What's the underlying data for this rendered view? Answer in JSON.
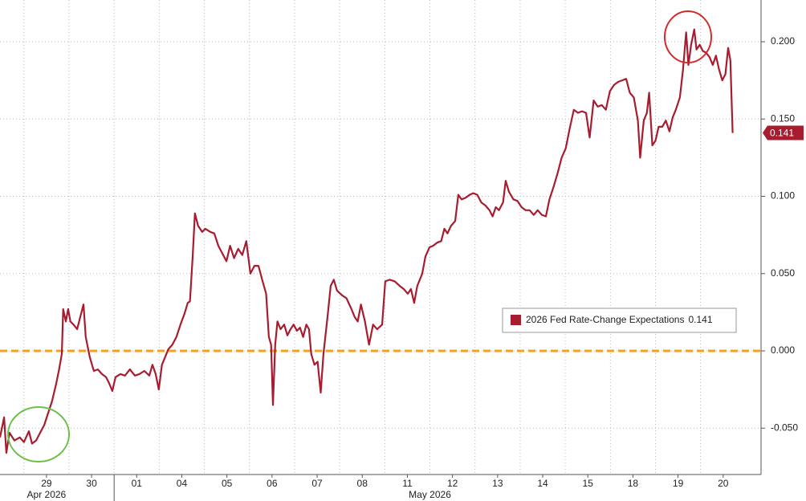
{
  "chart_data": {
    "type": "line",
    "x": [
      -1.03,
      -0.94,
      -0.89,
      -0.82,
      -0.71,
      -0.59,
      -0.5,
      -0.39,
      -0.32,
      -0.23,
      -0.14,
      -0.05,
      0.04,
      0.12,
      0.21,
      0.28,
      0.34,
      0.37,
      0.43,
      0.48,
      0.53,
      0.6,
      0.68,
      0.75,
      0.82,
      0.87,
      0.96,
      1.05,
      1.14,
      1.23,
      1.32,
      1.39,
      1.46,
      1.53,
      1.64,
      1.74,
      1.85,
      1.96,
      2.06,
      2.17,
      2.28,
      2.35,
      2.42,
      2.49,
      2.56,
      2.63,
      2.7,
      2.79,
      2.88,
      2.97,
      3.06,
      3.13,
      3.18,
      3.24,
      3.29,
      3.36,
      3.45,
      3.52,
      3.63,
      3.72,
      3.81,
      3.9,
      3.99,
      4.07,
      4.16,
      4.25,
      4.34,
      4.43,
      4.52,
      4.61,
      4.7,
      4.79,
      4.87,
      4.93,
      4.98,
      5.02,
      5.07,
      5.12,
      5.19,
      5.27,
      5.34,
      5.41,
      5.48,
      5.55,
      5.62,
      5.69,
      5.76,
      5.82,
      5.87,
      5.94,
      6.01,
      6.08,
      6.14,
      6.23,
      6.3,
      6.37,
      6.44,
      6.55,
      6.65,
      6.76,
      6.83,
      6.9,
      6.97,
      7.06,
      7.15,
      7.24,
      7.33,
      7.44,
      7.51,
      7.61,
      7.72,
      7.83,
      7.92,
      8.01,
      8.08,
      8.15,
      8.22,
      8.33,
      8.4,
      8.49,
      8.57,
      8.66,
      8.75,
      8.82,
      8.89,
      8.97,
      9.06,
      9.13,
      9.2,
      9.29,
      9.38,
      9.46,
      9.55,
      9.64,
      9.73,
      9.82,
      9.89,
      9.96,
      10.03,
      10.12,
      10.18,
      10.25,
      10.35,
      10.44,
      10.53,
      10.62,
      10.71,
      10.8,
      10.89,
      10.98,
      11.07,
      11.15,
      11.24,
      11.33,
      11.42,
      11.51,
      11.6,
      11.69,
      11.78,
      11.87,
      11.96,
      12.04,
      12.13,
      12.22,
      12.31,
      12.4,
      12.49,
      12.58,
      12.67,
      12.76,
      12.85,
      12.93,
      13.02,
      13.11,
      13.16,
      13.24,
      13.31,
      13.36,
      13.43,
      13.5,
      13.57,
      13.65,
      13.73,
      13.81,
      13.88,
      13.95,
      14.04,
      14.11,
      14.18,
      14.23,
      14.29,
      14.36,
      14.41,
      14.48,
      14.55,
      14.62,
      14.7,
      14.77,
      14.84,
      14.91,
      14.98,
      15.05,
      15.11,
      15.16,
      15.21
    ],
    "series": [
      {
        "name": "2026 Fed Rate-Change Expectations",
        "color": "#a81c30",
        "values": [
          -0.056,
          -0.043,
          -0.066,
          -0.053,
          -0.058,
          -0.056,
          -0.059,
          -0.052,
          -0.06,
          -0.058,
          -0.053,
          -0.048,
          -0.04,
          -0.033,
          -0.022,
          -0.012,
          -0.002,
          0.027,
          0.019,
          0.027,
          0.019,
          0.017,
          0.014,
          0.022,
          0.03,
          0.009,
          -0.004,
          -0.013,
          -0.012,
          -0.015,
          -0.017,
          -0.021,
          -0.026,
          -0.017,
          -0.015,
          -0.016,
          -0.012,
          -0.016,
          -0.015,
          -0.013,
          -0.016,
          -0.009,
          -0.015,
          -0.025,
          -0.009,
          -0.004,
          0.001,
          0.004,
          0.009,
          0.017,
          0.024,
          0.031,
          0.032,
          0.061,
          0.089,
          0.081,
          0.077,
          0.079,
          0.077,
          0.076,
          0.068,
          0.063,
          0.058,
          0.068,
          0.06,
          0.066,
          0.062,
          0.071,
          0.05,
          0.055,
          0.055,
          0.045,
          0.037,
          0.009,
          0.004,
          -0.035,
          0.004,
          0.019,
          0.014,
          0.017,
          0.01,
          0.014,
          0.017,
          0.013,
          0.015,
          0.009,
          0.017,
          0.014,
          -0.002,
          -0.009,
          -0.007,
          -0.027,
          -0.002,
          0.022,
          0.042,
          0.046,
          0.039,
          0.036,
          0.034,
          0.027,
          0.022,
          0.019,
          0.03,
          0.019,
          0.004,
          0.017,
          0.014,
          0.017,
          0.045,
          0.046,
          0.045,
          0.042,
          0.04,
          0.037,
          0.04,
          0.031,
          0.042,
          0.05,
          0.061,
          0.067,
          0.068,
          0.07,
          0.071,
          0.079,
          0.076,
          0.081,
          0.084,
          0.101,
          0.098,
          0.099,
          0.101,
          0.102,
          0.101,
          0.096,
          0.094,
          0.091,
          0.087,
          0.093,
          0.091,
          0.096,
          0.11,
          0.103,
          0.098,
          0.097,
          0.093,
          0.091,
          0.091,
          0.088,
          0.091,
          0.088,
          0.087,
          0.098,
          0.106,
          0.115,
          0.125,
          0.131,
          0.144,
          0.156,
          0.154,
          0.155,
          0.154,
          0.138,
          0.162,
          0.158,
          0.159,
          0.156,
          0.168,
          0.172,
          0.174,
          0.175,
          0.176,
          0.167,
          0.164,
          0.149,
          0.125,
          0.149,
          0.154,
          0.167,
          0.133,
          0.136,
          0.145,
          0.145,
          0.149,
          0.142,
          0.151,
          0.156,
          0.164,
          0.182,
          0.206,
          0.185,
          0.198,
          0.208,
          0.195,
          0.198,
          0.194,
          0.193,
          0.19,
          0.185,
          0.191,
          0.182,
          0.175,
          0.179,
          0.196,
          0.188,
          0.141
        ]
      }
    ],
    "xlim": [
      -1.03,
      15.84
    ],
    "xticks": [
      {
        "value": 0,
        "label": "29"
      },
      {
        "value": 1,
        "label": "30"
      },
      {
        "value": 2,
        "label": "01"
      },
      {
        "value": 3,
        "label": "04"
      },
      {
        "value": 4,
        "label": "05"
      },
      {
        "value": 5,
        "label": "06"
      },
      {
        "value": 6,
        "label": "07"
      },
      {
        "value": 7,
        "label": "08"
      },
      {
        "value": 8,
        "label": "11"
      },
      {
        "value": 9,
        "label": "12"
      },
      {
        "value": 10,
        "label": "13"
      },
      {
        "value": 11,
        "label": "14"
      },
      {
        "value": 12,
        "label": "15"
      },
      {
        "value": 13,
        "label": "18"
      },
      {
        "value": 14,
        "label": "19"
      },
      {
        "value": 15,
        "label": "20"
      }
    ],
    "x_group_labels": [
      {
        "value": 0,
        "label": "Apr 2026"
      },
      {
        "value": 8.5,
        "label": "May 2026"
      }
    ],
    "ylim": [
      -0.08,
      0.227
    ],
    "yticks": [
      {
        "value": -0.05,
        "label": "-0.050"
      },
      {
        "value": 0,
        "label": "0.000"
      },
      {
        "value": 0.05,
        "label": "0.050"
      },
      {
        "value": 0.1,
        "label": "0.100"
      },
      {
        "value": 0.15,
        "label": "0.150"
      },
      {
        "value": 0.2,
        "label": "0.200"
      }
    ],
    "reference_line": {
      "value": 0,
      "color": "#f5a11f"
    },
    "grid": true
  }
}
